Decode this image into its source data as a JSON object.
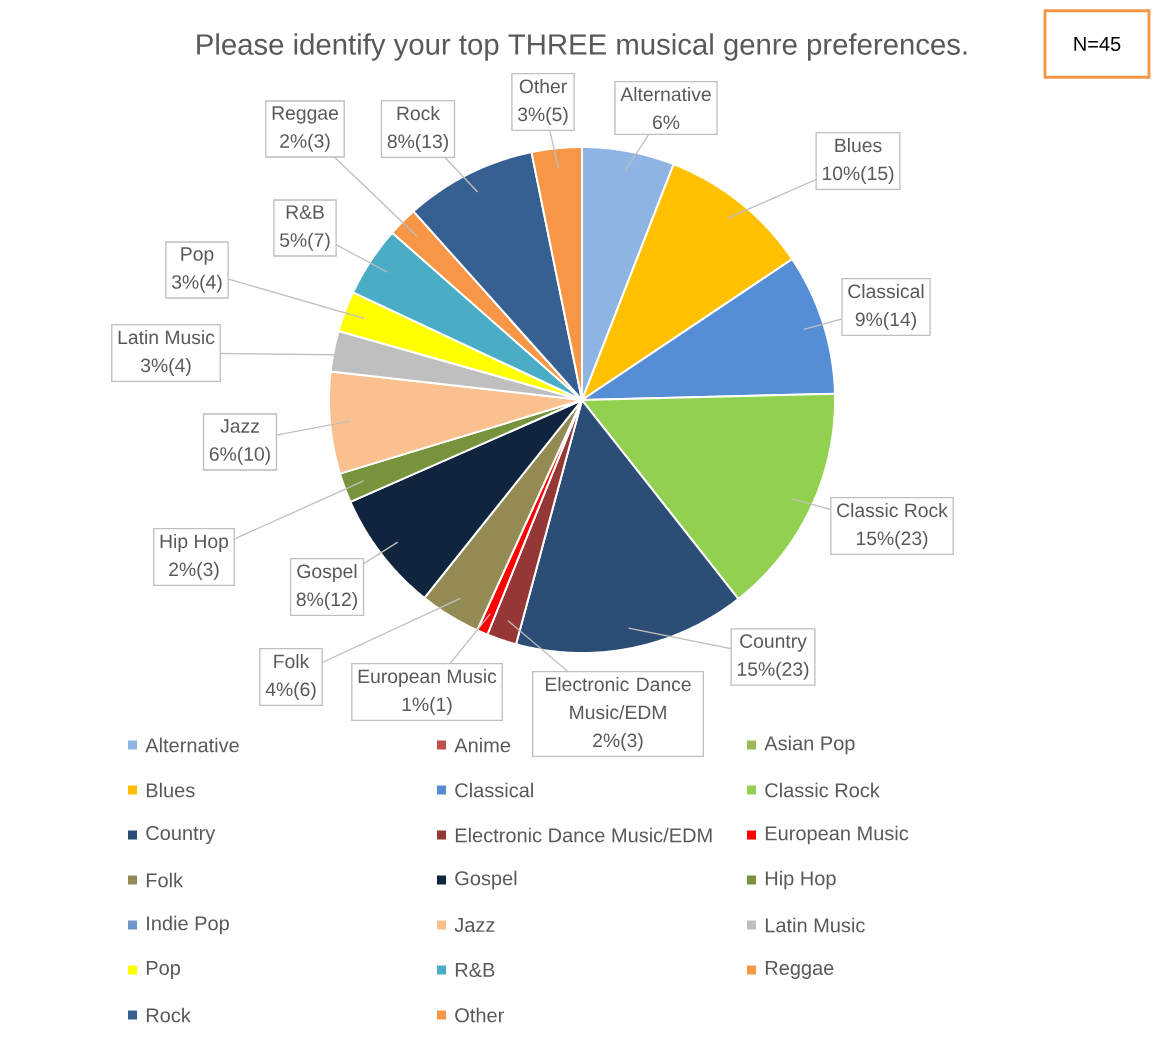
{
  "chart_data": {
    "type": "pie",
    "title": "Please identify your top THREE musical genre preferences.",
    "categories": [
      "Alternative",
      "Anime",
      "Asian Pop",
      "Blues",
      "Classical",
      "Classic Rock",
      "Country",
      "Electronic Dance Music/EDM",
      "European Music",
      "Folk",
      "Gospel",
      "Hip Hop",
      "Indie Pop",
      "Jazz",
      "Latin Music",
      "Pop",
      "R&B",
      "Reggae",
      "Rock",
      "Other"
    ],
    "values": [
      5.9,
      0,
      0,
      9.7,
      9.0,
      14.8,
      14.8,
      1.9,
      0.7,
      3.9,
      7.7,
      1.9,
      0,
      6.5,
      2.6,
      2.6,
      4.5,
      1.9,
      8.4,
      3.2
    ],
    "value_labels": [
      "6%",
      null,
      null,
      "10%(15)",
      "9%(14)",
      "15%(23)",
      "15%(23)",
      "2%(3)",
      "1%(1)",
      "4%(6)",
      "8%(12)",
      "2%(3)",
      null,
      "6%(10)",
      "3%(4)",
      "3%(4)",
      "5%(7)",
      "2%(3)",
      "8%(13)",
      "3%(5)"
    ],
    "colors": [
      "#8eb4e3",
      "#c0504d",
      "#9bbb59",
      "#ffc000",
      "#558ed5",
      "#92d050",
      "#2c4d75",
      "#953735",
      "#ff0000",
      "#948a54",
      "#10243e",
      "#77933c",
      "#6f96c8",
      "#fac090",
      "#bfbfbf",
      "#ffff00",
      "#4bacc6",
      "#f79646",
      "#376092",
      "#f79646"
    ],
    "legend": "bottom",
    "annotations": [
      "N=45"
    ]
  }
}
